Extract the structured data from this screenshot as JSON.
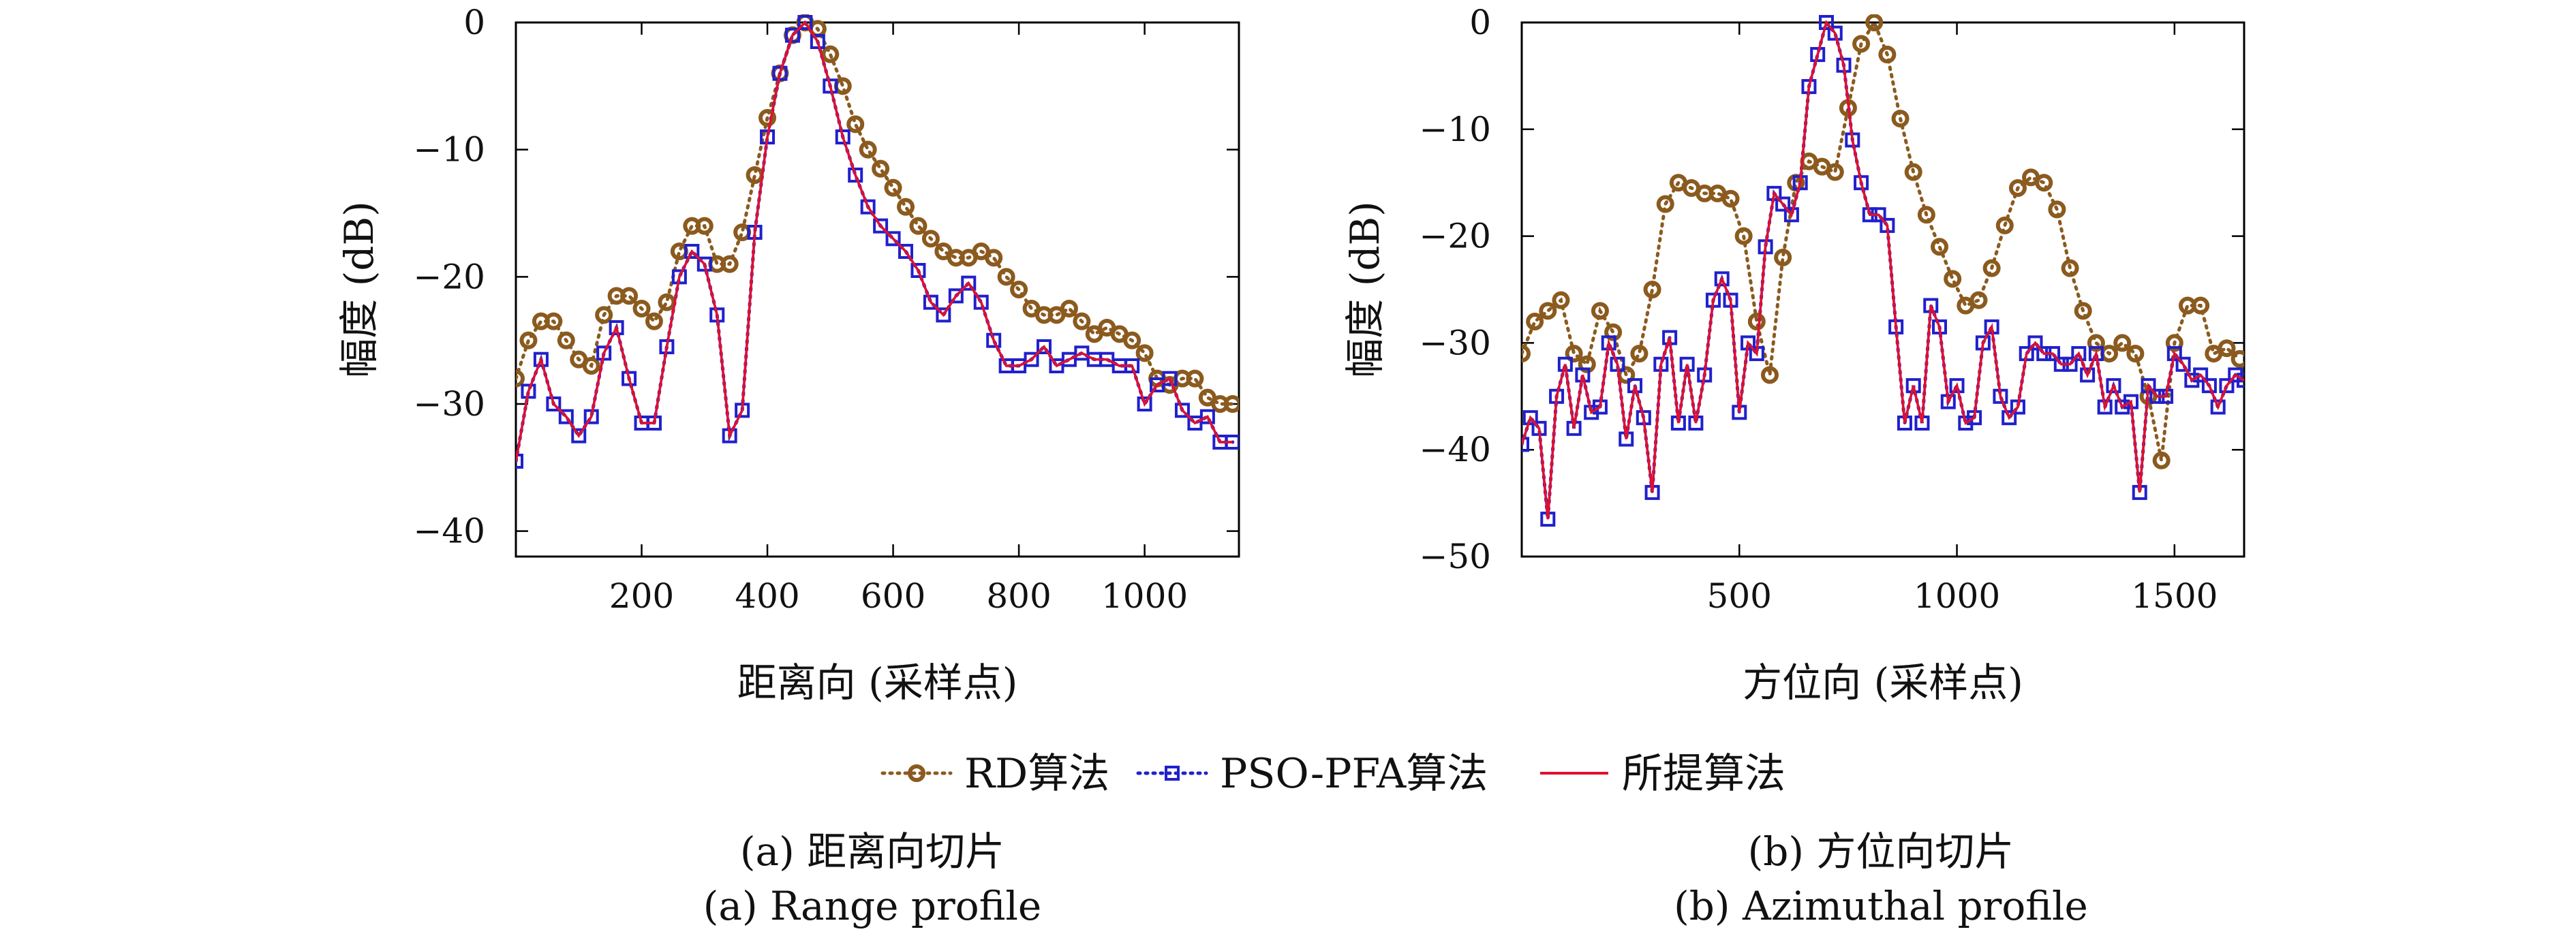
{
  "legend": {
    "items": [
      {
        "label": "RD算法",
        "color": "#8B5A1E",
        "marker": "circle",
        "linestyle": "dotted"
      },
      {
        "label": "PSO-PFA算法",
        "color": "#2020CC",
        "marker": "square",
        "linestyle": "dotted"
      },
      {
        "label": "所提算法",
        "color": "#E01030",
        "marker": "none",
        "linestyle": "solid"
      }
    ],
    "placement": "bottom-center"
  },
  "captions": {
    "a_cn": "(a) 距离向切片",
    "a_en": "(a) Range profile",
    "b_cn": "(b) 方位向切片",
    "b_en": "(b) Azimuthal profile"
  },
  "chart_data": [
    {
      "type": "line",
      "title": "",
      "xlabel": "距离向 (采样点)",
      "ylabel": "幅度 (dB)",
      "xlim": [
        0,
        1150
      ],
      "ylim": [
        -42,
        0
      ],
      "xticks": [
        200,
        400,
        600,
        800,
        1000
      ],
      "yticks": [
        0,
        -10,
        -20,
        -30,
        -40
      ],
      "xtick_labels": [
        "200",
        "400",
        "600",
        "800",
        "1000"
      ],
      "ytick_labels": [
        "0",
        "−10",
        "−20",
        "−30",
        "−40"
      ],
      "grid": false,
      "series": [
        {
          "name": "RD算法",
          "color": "#8B5A1E",
          "x": [
            0,
            20,
            40,
            60,
            80,
            100,
            120,
            140,
            160,
            180,
            200,
            220,
            240,
            260,
            280,
            300,
            320,
            340,
            360,
            380,
            400,
            420,
            440,
            460,
            480,
            500,
            520,
            540,
            560,
            580,
            600,
            620,
            640,
            660,
            680,
            700,
            720,
            740,
            760,
            780,
            800,
            820,
            840,
            860,
            880,
            900,
            920,
            940,
            960,
            980,
            1000,
            1020,
            1040,
            1060,
            1080,
            1100,
            1120,
            1140
          ],
          "y": [
            -28,
            -25,
            -23.5,
            -23.5,
            -25,
            -26.5,
            -27,
            -23,
            -21.5,
            -21.5,
            -22.5,
            -23.5,
            -22,
            -18,
            -16,
            -16,
            -19,
            -19,
            -16.5,
            -12,
            -7.5,
            -4,
            -1,
            0,
            -0.5,
            -2.5,
            -5,
            -8,
            -10,
            -11.5,
            -13,
            -14.5,
            -16,
            -17,
            -18,
            -18.5,
            -18.5,
            -18,
            -18.5,
            -20,
            -21,
            -22.5,
            -23,
            -23,
            -22.5,
            -23.5,
            -24.5,
            -24,
            -24.5,
            -25,
            -26,
            -28,
            -28.5,
            -28,
            -28,
            -29.5,
            -30,
            -30
          ]
        },
        {
          "name": "PSO-PFA算法",
          "color": "#2020CC",
          "x": [
            0,
            20,
            40,
            60,
            80,
            100,
            120,
            140,
            160,
            180,
            200,
            220,
            240,
            260,
            280,
            300,
            320,
            340,
            360,
            380,
            400,
            420,
            440,
            460,
            480,
            500,
            520,
            540,
            560,
            580,
            600,
            620,
            640,
            660,
            680,
            700,
            720,
            740,
            760,
            780,
            800,
            820,
            840,
            860,
            880,
            900,
            920,
            940,
            960,
            980,
            1000,
            1020,
            1040,
            1060,
            1080,
            1100,
            1120,
            1140
          ],
          "y": [
            -34.5,
            -29,
            -26.5,
            -30,
            -31,
            -32.5,
            -31,
            -26,
            -24,
            -28,
            -31.5,
            -31.5,
            -25.5,
            -20,
            -18,
            -19,
            -23,
            -32.5,
            -30.5,
            -16.5,
            -9,
            -4,
            -1,
            0,
            -1.5,
            -5,
            -9,
            -12,
            -14.5,
            -16,
            -17,
            -18,
            -19.5,
            -22,
            -23,
            -21.5,
            -20.5,
            -22,
            -25,
            -27,
            -27,
            -26.5,
            -25.5,
            -27,
            -26.5,
            -26,
            -26.5,
            -26.5,
            -27,
            -27,
            -30,
            -28.5,
            -28,
            -30.5,
            -31.5,
            -31,
            -33,
            -33
          ]
        },
        {
          "name": "所提算法",
          "color": "#E01030",
          "x": [
            0,
            20,
            40,
            60,
            80,
            100,
            120,
            140,
            160,
            180,
            200,
            220,
            240,
            260,
            280,
            300,
            320,
            340,
            360,
            380,
            400,
            420,
            440,
            460,
            480,
            500,
            520,
            540,
            560,
            580,
            600,
            620,
            640,
            660,
            680,
            700,
            720,
            740,
            760,
            780,
            800,
            820,
            840,
            860,
            880,
            900,
            920,
            940,
            960,
            980,
            1000,
            1020,
            1040,
            1060,
            1080,
            1100,
            1120,
            1140
          ],
          "y": [
            -34.5,
            -29,
            -26.5,
            -30,
            -31,
            -32.5,
            -31,
            -26,
            -24,
            -28,
            -31.5,
            -31.5,
            -25.5,
            -20,
            -18,
            -19,
            -23,
            -32.5,
            -30.5,
            -16.5,
            -9,
            -4,
            -1,
            0,
            -1.5,
            -5,
            -9,
            -12,
            -14.5,
            -16,
            -17,
            -18,
            -19.5,
            -22,
            -23,
            -21.5,
            -20.5,
            -22,
            -25,
            -27,
            -27,
            -26.5,
            -25.5,
            -27,
            -26.5,
            -26,
            -26.5,
            -26.5,
            -27,
            -27,
            -30,
            -28.5,
            -28,
            -30.5,
            -31.5,
            -31,
            -33,
            -33
          ]
        }
      ]
    },
    {
      "type": "line",
      "title": "",
      "xlabel": "方位向 (采样点)",
      "ylabel": "幅度 (dB)",
      "xlim": [
        0,
        1660
      ],
      "ylim": [
        -50,
        0
      ],
      "xticks": [
        500,
        1000,
        1500
      ],
      "yticks": [
        0,
        -10,
        -20,
        -30,
        -40,
        -50
      ],
      "xtick_labels": [
        "500",
        "1000",
        "1500"
      ],
      "ytick_labels": [
        "0",
        "−10",
        "−20",
        "−30",
        "−40",
        "−50"
      ],
      "grid": false,
      "series": [
        {
          "name": "RD算法",
          "color": "#8B5A1E",
          "x": [
            0,
            30,
            60,
            90,
            120,
            150,
            180,
            210,
            240,
            270,
            300,
            330,
            360,
            390,
            420,
            450,
            480,
            510,
            540,
            570,
            600,
            630,
            660,
            690,
            720,
            750,
            780,
            810,
            840,
            870,
            900,
            930,
            960,
            990,
            1020,
            1050,
            1080,
            1110,
            1140,
            1170,
            1200,
            1230,
            1260,
            1290,
            1320,
            1350,
            1380,
            1410,
            1440,
            1470,
            1500,
            1530,
            1560,
            1590,
            1620,
            1650
          ],
          "y": [
            -31,
            -28,
            -27,
            -26,
            -31,
            -32,
            -27,
            -29,
            -33,
            -31,
            -25,
            -17,
            -15,
            -15.5,
            -16,
            -16,
            -16.5,
            -20,
            -28,
            -33,
            -22,
            -15,
            -13,
            -13.5,
            -14,
            -8,
            -2,
            0,
            -3,
            -9,
            -14,
            -18,
            -21,
            -24,
            -26.5,
            -26,
            -23,
            -19,
            -15.5,
            -14.5,
            -15,
            -17.5,
            -23,
            -27,
            -30,
            -31,
            -30,
            -31,
            -35,
            -41,
            -30,
            -26.5,
            -26.5,
            -31,
            -30.5,
            -31.5
          ]
        },
        {
          "name": "PSO-PFA算法",
          "color": "#2020CC",
          "x": [
            0,
            20,
            40,
            60,
            80,
            100,
            120,
            140,
            160,
            180,
            200,
            220,
            240,
            260,
            280,
            300,
            320,
            340,
            360,
            380,
            400,
            420,
            440,
            460,
            480,
            500,
            520,
            540,
            560,
            580,
            600,
            620,
            640,
            660,
            680,
            700,
            720,
            740,
            760,
            780,
            800,
            820,
            840,
            860,
            880,
            900,
            920,
            940,
            960,
            980,
            1000,
            1020,
            1040,
            1060,
            1080,
            1100,
            1120,
            1140,
            1160,
            1180,
            1200,
            1220,
            1240,
            1260,
            1280,
            1300,
            1320,
            1340,
            1360,
            1380,
            1400,
            1420,
            1440,
            1460,
            1480,
            1500,
            1520,
            1540,
            1560,
            1580,
            1600,
            1620,
            1640,
            1660
          ],
          "y": [
            -39.5,
            -37,
            -38,
            -46.5,
            -35,
            -32,
            -38,
            -33,
            -36.5,
            -36,
            -30,
            -32,
            -39,
            -34,
            -37,
            -44,
            -32,
            -29.5,
            -37.5,
            -32,
            -37.5,
            -33,
            -26,
            -24,
            -26,
            -36.5,
            -30,
            -31,
            -21,
            -16,
            -17,
            -18,
            -15,
            -6,
            -3,
            0,
            -1,
            -4,
            -11,
            -15,
            -18,
            -18,
            -19,
            -28.5,
            -37.5,
            -34,
            -37.5,
            -26.5,
            -28.5,
            -35.5,
            -34,
            -37.5,
            -37,
            -30,
            -28.5,
            -35,
            -37,
            -36,
            -31,
            -30,
            -31,
            -31,
            -32,
            -32,
            -31,
            -33,
            -31,
            -36,
            -34,
            -36,
            -35.5,
            -44,
            -34,
            -35,
            -35,
            -31,
            -32,
            -33.5,
            -33,
            -34,
            -36,
            -34,
            -33,
            -33.5
          ]
        },
        {
          "name": "所提算法",
          "color": "#E01030",
          "x": [
            0,
            20,
            40,
            60,
            80,
            100,
            120,
            140,
            160,
            180,
            200,
            220,
            240,
            260,
            280,
            300,
            320,
            340,
            360,
            380,
            400,
            420,
            440,
            460,
            480,
            500,
            520,
            540,
            560,
            580,
            600,
            620,
            640,
            660,
            680,
            700,
            720,
            740,
            760,
            780,
            800,
            820,
            840,
            860,
            880,
            900,
            920,
            940,
            960,
            980,
            1000,
            1020,
            1040,
            1060,
            1080,
            1100,
            1120,
            1140,
            1160,
            1180,
            1200,
            1220,
            1240,
            1260,
            1280,
            1300,
            1320,
            1340,
            1360,
            1380,
            1400,
            1420,
            1440,
            1460,
            1480,
            1500,
            1520,
            1540,
            1560,
            1580,
            1600,
            1620,
            1640,
            1660
          ],
          "y": [
            -39.5,
            -37,
            -38,
            -46.5,
            -35,
            -32,
            -38,
            -33,
            -36.5,
            -36,
            -30,
            -32,
            -39,
            -34,
            -37,
            -44,
            -32,
            -29.5,
            -37.5,
            -32,
            -37.5,
            -33,
            -26,
            -24,
            -26,
            -36.5,
            -30,
            -31,
            -21,
            -16,
            -17,
            -18,
            -15,
            -6,
            -3,
            0,
            -1,
            -4,
            -11,
            -15,
            -18,
            -18,
            -19,
            -28.5,
            -37.5,
            -34,
            -37.5,
            -26.5,
            -28.5,
            -35.5,
            -34,
            -37.5,
            -37,
            -30,
            -28.5,
            -35,
            -37,
            -36,
            -31,
            -30,
            -31,
            -31,
            -32,
            -32,
            -31,
            -33,
            -31,
            -36,
            -34,
            -36,
            -35.5,
            -44,
            -34,
            -35,
            -35,
            -31,
            -32,
            -33.5,
            -33,
            -34,
            -36,
            -34,
            -33,
            -33.5
          ]
        }
      ]
    }
  ]
}
